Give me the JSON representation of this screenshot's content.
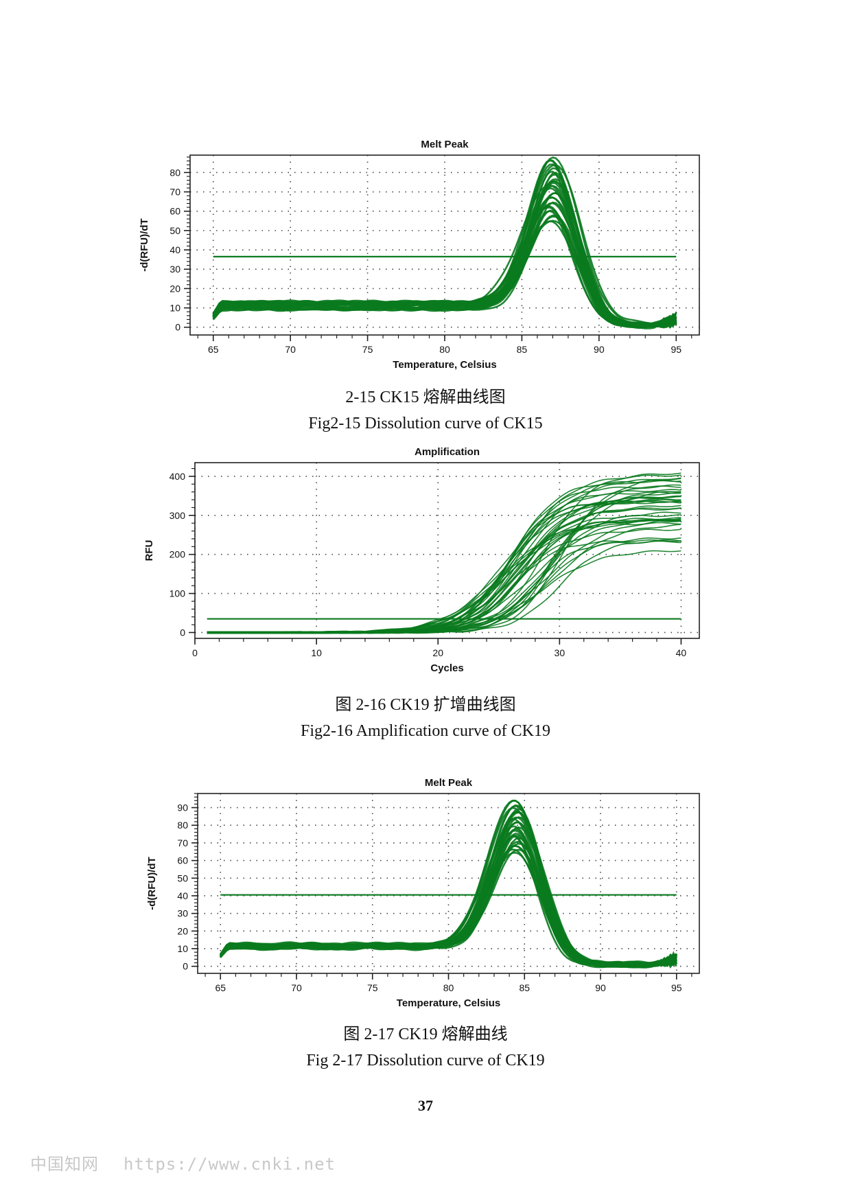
{
  "colors": {
    "curve": "#0a7a1e",
    "threshold": "#0a7a1e",
    "axis": "#222222",
    "grid": "#444444"
  },
  "captions": {
    "fig15_cn": "2-15 CK15 熔解曲线图",
    "fig15_en": "Fig2-15   Dissolution curve of CK15",
    "fig16_cn": "图 2-16 CK19 扩增曲线图",
    "fig16_en": "Fig2-16 Amplification curve of CK19",
    "fig17_cn": "图 2-17 CK19 熔解曲线",
    "fig17_en": "Fig 2-17 Dissolution curve of CK19"
  },
  "page_number": "37",
  "watermark": {
    "site_cn": "中国知网",
    "url": "https://www.cnki.net"
  },
  "chart_data": [
    {
      "id": "melt-ck15",
      "type": "line",
      "title": "Melt Peak",
      "xlabel": "Temperature, Celsius",
      "ylabel": "-d(RFU)/dT",
      "xlim": [
        63.5,
        96.5
      ],
      "ylim": [
        -4,
        89
      ],
      "xticks": [
        65,
        70,
        75,
        80,
        85,
        90,
        95
      ],
      "yticks": [
        0,
        10,
        20,
        30,
        40,
        50,
        60,
        70,
        80
      ],
      "grid": true,
      "threshold": 36.5,
      "curve_family": {
        "kind": "melt",
        "count": 30,
        "x_range": [
          65,
          95
        ],
        "baseline_level": [
          9,
          13
        ],
        "peak_center": 87.0,
        "peak_width": 1.6,
        "peak_height": [
          53,
          85
        ],
        "post_peak_level": [
          0,
          2
        ]
      }
    },
    {
      "id": "amp-ck19",
      "type": "line",
      "title": "Amplification",
      "xlabel": "Cycles",
      "ylabel": "RFU",
      "xlim": [
        0,
        41.5
      ],
      "ylim": [
        -15,
        435
      ],
      "xticks": [
        0,
        10,
        20,
        30,
        40
      ],
      "yticks": [
        0,
        100,
        200,
        300,
        400
      ],
      "grid": true,
      "threshold": 35,
      "curve_family": {
        "kind": "sigmoid",
        "count": 40,
        "x_range": [
          1,
          40
        ],
        "plateau": [
          200,
          415
        ],
        "midpoint": [
          25,
          30
        ],
        "slope": [
          1.3,
          2.0
        ]
      }
    },
    {
      "id": "melt-ck19",
      "type": "line",
      "title": "Melt Peak",
      "xlabel": "Temperature, Celsius",
      "ylabel": "-d(RFU)/dT",
      "xlim": [
        63.5,
        96.5
      ],
      "ylim": [
        -4,
        98
      ],
      "xticks": [
        65,
        70,
        75,
        80,
        85,
        90,
        95
      ],
      "yticks": [
        0,
        10,
        20,
        30,
        40,
        50,
        60,
        70,
        80,
        90
      ],
      "grid": true,
      "threshold": 40.5,
      "curve_family": {
        "kind": "melt",
        "count": 30,
        "x_range": [
          65,
          95
        ],
        "baseline_level": [
          10,
          13
        ],
        "peak_center": 84.5,
        "peak_width": 1.6,
        "peak_height": [
          62,
          92
        ],
        "post_peak_level": [
          0,
          2
        ]
      }
    }
  ]
}
